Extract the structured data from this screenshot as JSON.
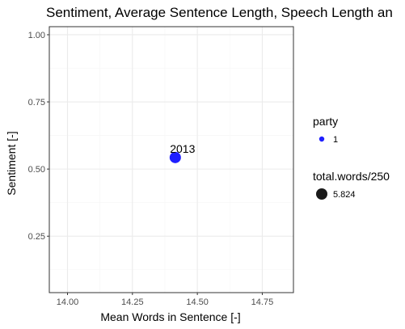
{
  "chart_data": {
    "type": "scatter",
    "title": "Sentiment, Average Sentence Length, Speech Length an",
    "xlabel": "Mean Words in Sentence [-]",
    "ylabel": "Sentiment [-]",
    "xlim": [
      13.93,
      14.87
    ],
    "ylim": [
      0.04,
      1.03
    ],
    "x_ticks": [
      14.0,
      14.25,
      14.5,
      14.75
    ],
    "x_tick_labels": [
      "14.00",
      "14.25",
      "14.50",
      "14.75"
    ],
    "y_ticks": [
      0.25,
      0.5,
      0.75,
      1.0
    ],
    "y_tick_labels": [
      "0.25",
      "0.50",
      "0.75",
      "1.00"
    ],
    "grid": true,
    "points": [
      {
        "x": 14.415,
        "y": 0.543,
        "label": "2013",
        "party": "1",
        "size": 5.824
      }
    ],
    "legend": {
      "placement": "right",
      "color_title": "party",
      "color_entries": [
        {
          "label": "1",
          "color": "#1f1fff"
        }
      ],
      "size_title": "total.words/250",
      "size_entries": [
        {
          "label": "5.824",
          "color": "#1a1a1a"
        }
      ]
    },
    "colors": {
      "point": "#1f1fff",
      "panel_border": "#333333",
      "grid_major": "#ebebeb",
      "grid_minor": "#f5f5f5"
    }
  }
}
